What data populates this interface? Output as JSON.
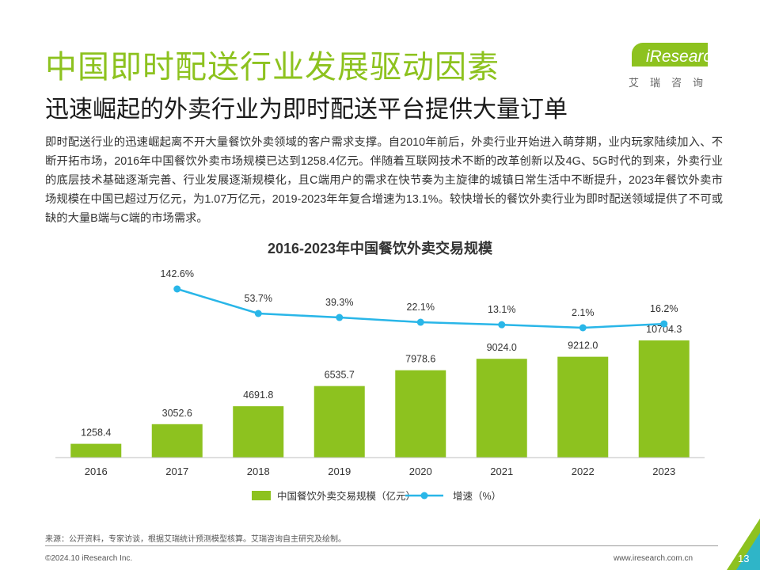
{
  "title": "中国即时配送行业发展驱动因素",
  "subtitle": "迅速崛起的外卖行业为即时配送平台提供大量订单",
  "logo": {
    "brand": "iResearch",
    "cn": "艾瑞咨询"
  },
  "body": "即时配送行业的迅速崛起离不开大量餐饮外卖领域的客户需求支撑。自2010年前后，外卖行业开始进入萌芽期，业内玩家陆续加入、不断开拓市场，2016年中国餐饮外卖市场规模已达到1258.4亿元。伴随着互联网技术不断的改革创新以及4G、5G时代的到来，外卖行业的底层技术基础逐渐完善、行业发展逐渐规模化，且C端用户的需求在快节奏为主旋律的城镇日常生活中不断提升，2023年餐饮外卖市场规模在中国已超过万亿元，为1.07万亿元，2019-2023年年复合增速为13.1%。较快增长的餐饮外卖行业为即时配送领域提供了不可或缺的大量B端与C端的市场需求。",
  "chart_data": {
    "type": "bar",
    "title": "2016-2023年中国餐饮外卖交易规模",
    "categories": [
      "2016",
      "2017",
      "2018",
      "2019",
      "2020",
      "2021",
      "2022",
      "2023"
    ],
    "series": [
      {
        "name": "中国餐饮外卖交易规模（亿元）",
        "type": "bar",
        "values": [
          1258.4,
          3052.6,
          4691.8,
          6535.7,
          7978.6,
          9024.0,
          9212.0,
          10704.3
        ],
        "labels": [
          "1258.4",
          "3052.6",
          "4691.8",
          "6535.7",
          "7978.6",
          "9024.0",
          "9212.0",
          "10704.3"
        ]
      },
      {
        "name": "增速（%）",
        "type": "line",
        "values": [
          null,
          142.6,
          53.7,
          39.3,
          22.1,
          13.1,
          2.1,
          16.2
        ],
        "labels": [
          "",
          "142.6%",
          "53.7%",
          "39.3%",
          "22.1%",
          "13.1%",
          "2.1%",
          "16.2%"
        ]
      }
    ],
    "legend_position": "bottom",
    "grid": false,
    "colors": {
      "bar": "#8dc21f",
      "line": "#29b6e8"
    }
  },
  "footer": {
    "source": "来源：公开资料，专家访谈，根据艾瑞统计预测模型核算。艾瑞咨询自主研究及绘制。",
    "copyright": "©2024.10 iResearch Inc.",
    "site": "www.iresearch.com.cn",
    "page": "13"
  }
}
